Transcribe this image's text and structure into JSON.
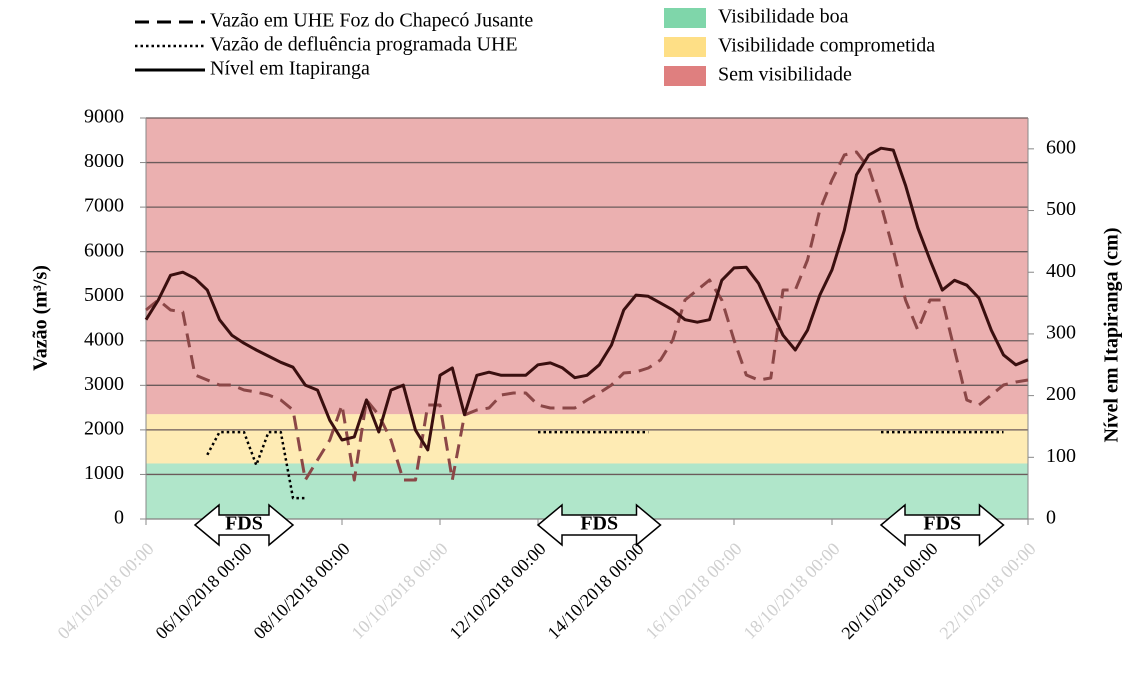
{
  "chart_data": {
    "type": "line",
    "x": [
      "04/10/2018 00:00",
      "04/10/2018 06:00",
      "04/10/2018 12:00",
      "04/10/2018 18:00",
      "05/10/2018 00:00",
      "05/10/2018 06:00",
      "05/10/2018 12:00",
      "05/10/2018 18:00",
      "06/10/2018 00:00",
      "06/10/2018 06:00",
      "06/10/2018 12:00",
      "06/10/2018 18:00",
      "07/10/2018 00:00",
      "07/10/2018 06:00",
      "07/10/2018 12:00",
      "07/10/2018 18:00",
      "08/10/2018 00:00",
      "08/10/2018 06:00",
      "08/10/2018 12:00",
      "08/10/2018 18:00",
      "09/10/2018 00:00",
      "09/10/2018 06:00",
      "09/10/2018 12:00",
      "09/10/2018 18:00",
      "10/10/2018 00:00",
      "10/10/2018 06:00",
      "10/10/2018 12:00",
      "10/10/2018 18:00",
      "11/10/2018 00:00",
      "11/10/2018 06:00",
      "11/10/2018 12:00",
      "11/10/2018 18:00",
      "12/10/2018 00:00",
      "12/10/2018 06:00",
      "12/10/2018 12:00",
      "12/10/2018 18:00",
      "13/10/2018 00:00",
      "13/10/2018 06:00",
      "13/10/2018 12:00",
      "13/10/2018 18:00",
      "14/10/2018 00:00",
      "14/10/2018 06:00",
      "14/10/2018 12:00",
      "14/10/2018 18:00",
      "15/10/2018 00:00",
      "15/10/2018 06:00",
      "15/10/2018 12:00",
      "15/10/2018 18:00",
      "16/10/2018 00:00",
      "16/10/2018 06:00",
      "16/10/2018 12:00",
      "16/10/2018 18:00",
      "17/10/2018 00:00",
      "17/10/2018 06:00",
      "17/10/2018 12:00",
      "17/10/2018 18:00",
      "18/10/2018 00:00",
      "18/10/2018 06:00",
      "18/10/2018 12:00",
      "18/10/2018 18:00",
      "19/10/2018 00:00",
      "19/10/2018 06:00",
      "19/10/2018 12:00",
      "19/10/2018 18:00",
      "20/10/2018 00:00",
      "20/10/2018 06:00",
      "20/10/2018 12:00",
      "20/10/2018 18:00",
      "21/10/2018 00:00",
      "21/10/2018 06:00",
      "21/10/2018 12:00",
      "21/10/2018 18:00",
      "22/10/2018 00:00"
    ],
    "series": [
      {
        "name": "Vazão em UHE Foz do Chapecó Jusante",
        "color": "#8b4747",
        "dash": "dashed",
        "axis": "y",
        "values": [
          4690,
          4915,
          4690,
          4645,
          3232,
          3119,
          3007,
          3007,
          2895,
          2850,
          2783,
          2670,
          2446,
          875,
          1324,
          1773,
          2558,
          875,
          2670,
          2334,
          1773,
          875,
          875,
          2558,
          2558,
          875,
          2334,
          2446,
          2491,
          2783,
          2828,
          2828,
          2558,
          2491,
          2491,
          2491,
          2670,
          2828,
          3007,
          3276,
          3299,
          3389,
          3568,
          4017,
          4915,
          5139,
          5363,
          4915,
          4017,
          3232,
          3119,
          3164,
          5139,
          5139,
          5812,
          6934,
          7608,
          8169,
          8236,
          7877,
          7047,
          6037,
          4915,
          4241,
          4915,
          4915,
          3793,
          2670,
          2558,
          2783,
          3007,
          3074,
          3119
        ]
      },
      {
        "name": "Vazão de defluência programada UHE",
        "color": "#000000",
        "dash": "dotted",
        "axis": "y",
        "values": [
          null,
          null,
          null,
          null,
          null,
          1440,
          1950,
          1950,
          1950,
          1210,
          1950,
          1950,
          470,
          470,
          null,
          null,
          null,
          null,
          null,
          null,
          null,
          null,
          null,
          null,
          null,
          null,
          null,
          null,
          null,
          null,
          null,
          null,
          1950,
          1950,
          1950,
          1950,
          1950,
          1950,
          1950,
          1950,
          1950,
          1950,
          null,
          null,
          null,
          null,
          null,
          null,
          null,
          null,
          null,
          null,
          null,
          null,
          null,
          null,
          null,
          null,
          null,
          null,
          1950,
          1950,
          1950,
          1950,
          1950,
          1950,
          1950,
          1950,
          1950,
          1950,
          1950,
          null,
          null
        ]
      },
      {
        "name": "Nível em Itapiranga",
        "color": "#3a0f0f",
        "dash": "solid",
        "axis": "y2",
        "values": [
          323,
          355,
          395,
          400,
          390,
          371,
          323,
          298,
          285,
          274,
          264,
          254,
          246,
          217,
          209,
          160,
          128,
          133,
          193,
          141,
          209,
          217,
          144,
          112,
          233,
          245,
          169,
          233,
          238,
          233,
          233,
          233,
          250,
          253,
          245,
          229,
          233,
          250,
          282,
          339,
          363,
          361,
          350,
          339,
          323,
          319,
          323,
          387,
          407,
          408,
          382,
          339,
          298,
          274,
          306,
          363,
          404,
          468,
          558,
          590,
          601,
          598,
          541,
          472,
          420,
          371,
          387,
          379,
          358,
          306,
          266,
          250,
          258
        ]
      }
    ],
    "bands": [
      {
        "name": "Visibilidade  boa",
        "color": "#7fd6aa",
        "range": [
          0,
          90
        ]
      },
      {
        "name": "Visibilidade  comprometida",
        "color": "#fedf86",
        "range": [
          90,
          170
        ]
      },
      {
        "name": "Sem visibilidade",
        "color": "#df7f7f",
        "range": [
          170,
          650
        ]
      }
    ],
    "y_label": "Vazão  (m³/s)",
    "y2_label": "Nível em Itapiranga  (cm)",
    "xlim": [
      "04/10/2018 00:00",
      "22/10/2018 00:00"
    ],
    "xticks": [
      "04/10/2018 00:00",
      "06/10/2018 00:00",
      "08/10/2018 00:00",
      "10/10/2018 00:00",
      "12/10/2018 00:00",
      "14/10/2018 00:00",
      "16/10/2018 00:00",
      "18/10/2018 00:00",
      "20/10/2018 00:00",
      "22/10/2018 00:00"
    ],
    "xtick_colors": [
      "#cfcfcf",
      "#000000",
      "#000000",
      "#cfcfcf",
      "#000000",
      "#000000",
      "#cfcfcf",
      "#cfcfcf",
      "#000000",
      "#cfcfcf"
    ],
    "ylim": [
      0,
      9000
    ],
    "yticks": [
      0,
      1000,
      2000,
      3000,
      4000,
      5000,
      6000,
      7000,
      8000,
      9000
    ],
    "y2lim": [
      0,
      650
    ],
    "y2ticks": [
      0,
      100,
      200,
      300,
      400,
      500,
      600
    ],
    "grid": true,
    "annotations": [
      {
        "text": "FDS",
        "start": "05/10/2018 00:00",
        "end": "07/10/2018 00:00"
      },
      {
        "text": "FDS",
        "start": "12/10/2018 00:00",
        "end": "14/10/2018 12:00"
      },
      {
        "text": "FDS",
        "start": "19/10/2018 00:00",
        "end": "21/10/2018 12:00"
      }
    ]
  }
}
